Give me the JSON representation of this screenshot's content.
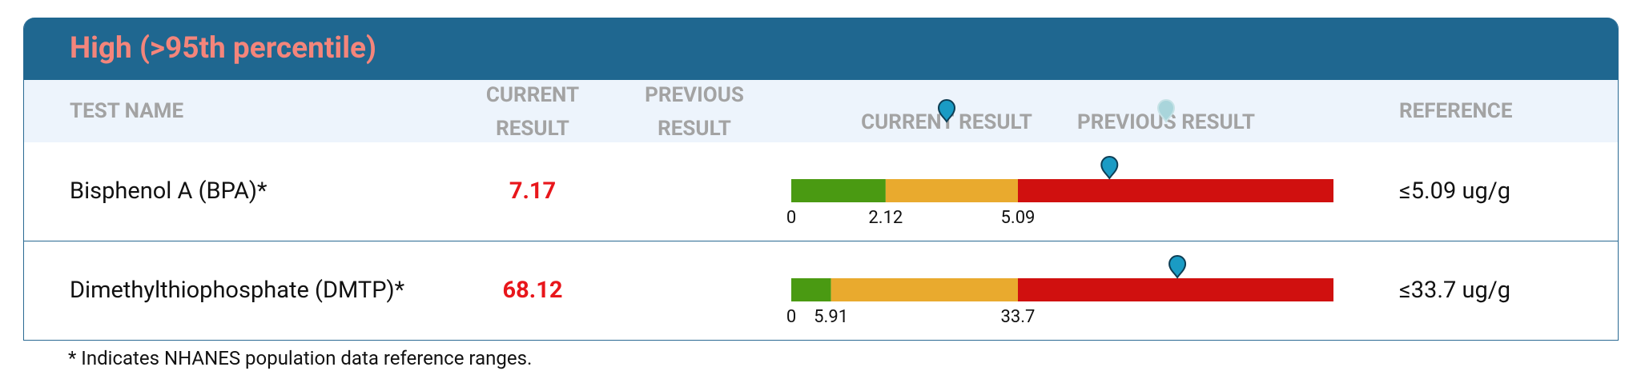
{
  "header": {
    "title": "High (>95th percentile)"
  },
  "columns": {
    "test_name": "TEST NAME",
    "current": "CURRENT RESULT",
    "previous": "PREVIOUS RESULT",
    "legend_current": "CURRENT RESULT",
    "legend_previous": "PREVIOUS RESULT",
    "reference": "REFERENCE"
  },
  "rows": [
    {
      "name": "Bisphenol A (BPA)*",
      "current": 7.17,
      "range_ticks": [
        0,
        2.12,
        5.09
      ],
      "reference": "≤5.09 ug/g"
    },
    {
      "name": "Dimethylthiophosphate (DMTP)*",
      "current": 68.12,
      "range_ticks": [
        0,
        5.91,
        33.7
      ],
      "reference": "≤33.7 ug/g"
    }
  ],
  "footnote": "* Indicates NHANES population data reference ranges."
}
